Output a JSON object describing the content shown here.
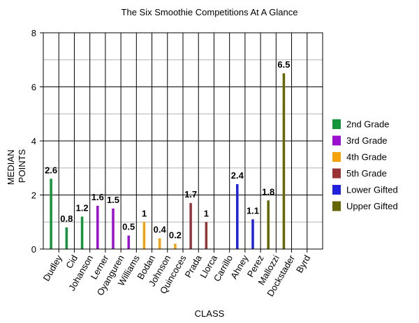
{
  "chart_data": {
    "type": "bar",
    "title": "The Six Smoothie Competitions At A Glance",
    "xlabel": "CLASS",
    "ylabel_lines": [
      "MEDIAN",
      "POINTS"
    ],
    "ylim": [
      0,
      8
    ],
    "yticks": [
      0,
      2,
      4,
      6,
      8
    ],
    "minor_grid_step": 1,
    "grid": true,
    "legend_position": "right",
    "categories": [
      "Dudley",
      "Cid",
      "Johanson",
      "Lerner",
      "Oyanguren",
      "Williams",
      "Bodan",
      "Johnson",
      "Quincoces",
      "Prada",
      "Llorca",
      "Carrillo",
      "Ahney",
      "Perez",
      "Mallozzi",
      "Dockstader",
      "Byrd"
    ],
    "series": [
      {
        "name": "2nd Grade",
        "color": "#11963b",
        "points": [
          {
            "category": "Dudley",
            "value": 2.6,
            "label": "2.6"
          },
          {
            "category": "Cid",
            "value": 0.8,
            "label": "0.8"
          },
          {
            "category": "Johanson",
            "value": 1.2,
            "label": "1.2"
          }
        ]
      },
      {
        "name": "3rd Grade",
        "color": "#9b0fcf",
        "points": [
          {
            "category": "Lerner",
            "value": 1.6,
            "label": "1.6"
          },
          {
            "category": "Oyanguren",
            "value": 1.5,
            "label": "1.5"
          },
          {
            "category": "Williams",
            "value": 0.5,
            "label": "0.5"
          }
        ]
      },
      {
        "name": "4th Grade",
        "color": "#f5a20c",
        "points": [
          {
            "category": "Bodan",
            "value": 1.0,
            "label": "1"
          },
          {
            "category": "Johnson",
            "value": 0.4,
            "label": "0.4"
          },
          {
            "category": "Quincoces",
            "value": 0.2,
            "label": "0.2"
          }
        ]
      },
      {
        "name": "5th Grade",
        "color": "#993333",
        "points": [
          {
            "category": "Prada",
            "value": 1.7,
            "label": "1.7"
          },
          {
            "category": "Llorca",
            "value": 1.0,
            "label": "1"
          }
        ]
      },
      {
        "name": "Lower Gifted",
        "color": "#2020dd",
        "points": [
          {
            "category": "Ahney",
            "value": 2.4,
            "label": "2.4"
          },
          {
            "category": "Perez",
            "value": 1.1,
            "label": "1.1"
          }
        ]
      },
      {
        "name": "Upper Gifted",
        "color": "#666600",
        "points": [
          {
            "category": "Mallozzi",
            "value": 1.8,
            "label": "1.8"
          },
          {
            "category": "Dockstader",
            "value": 6.5,
            "label": "6.5"
          }
        ]
      }
    ]
  }
}
